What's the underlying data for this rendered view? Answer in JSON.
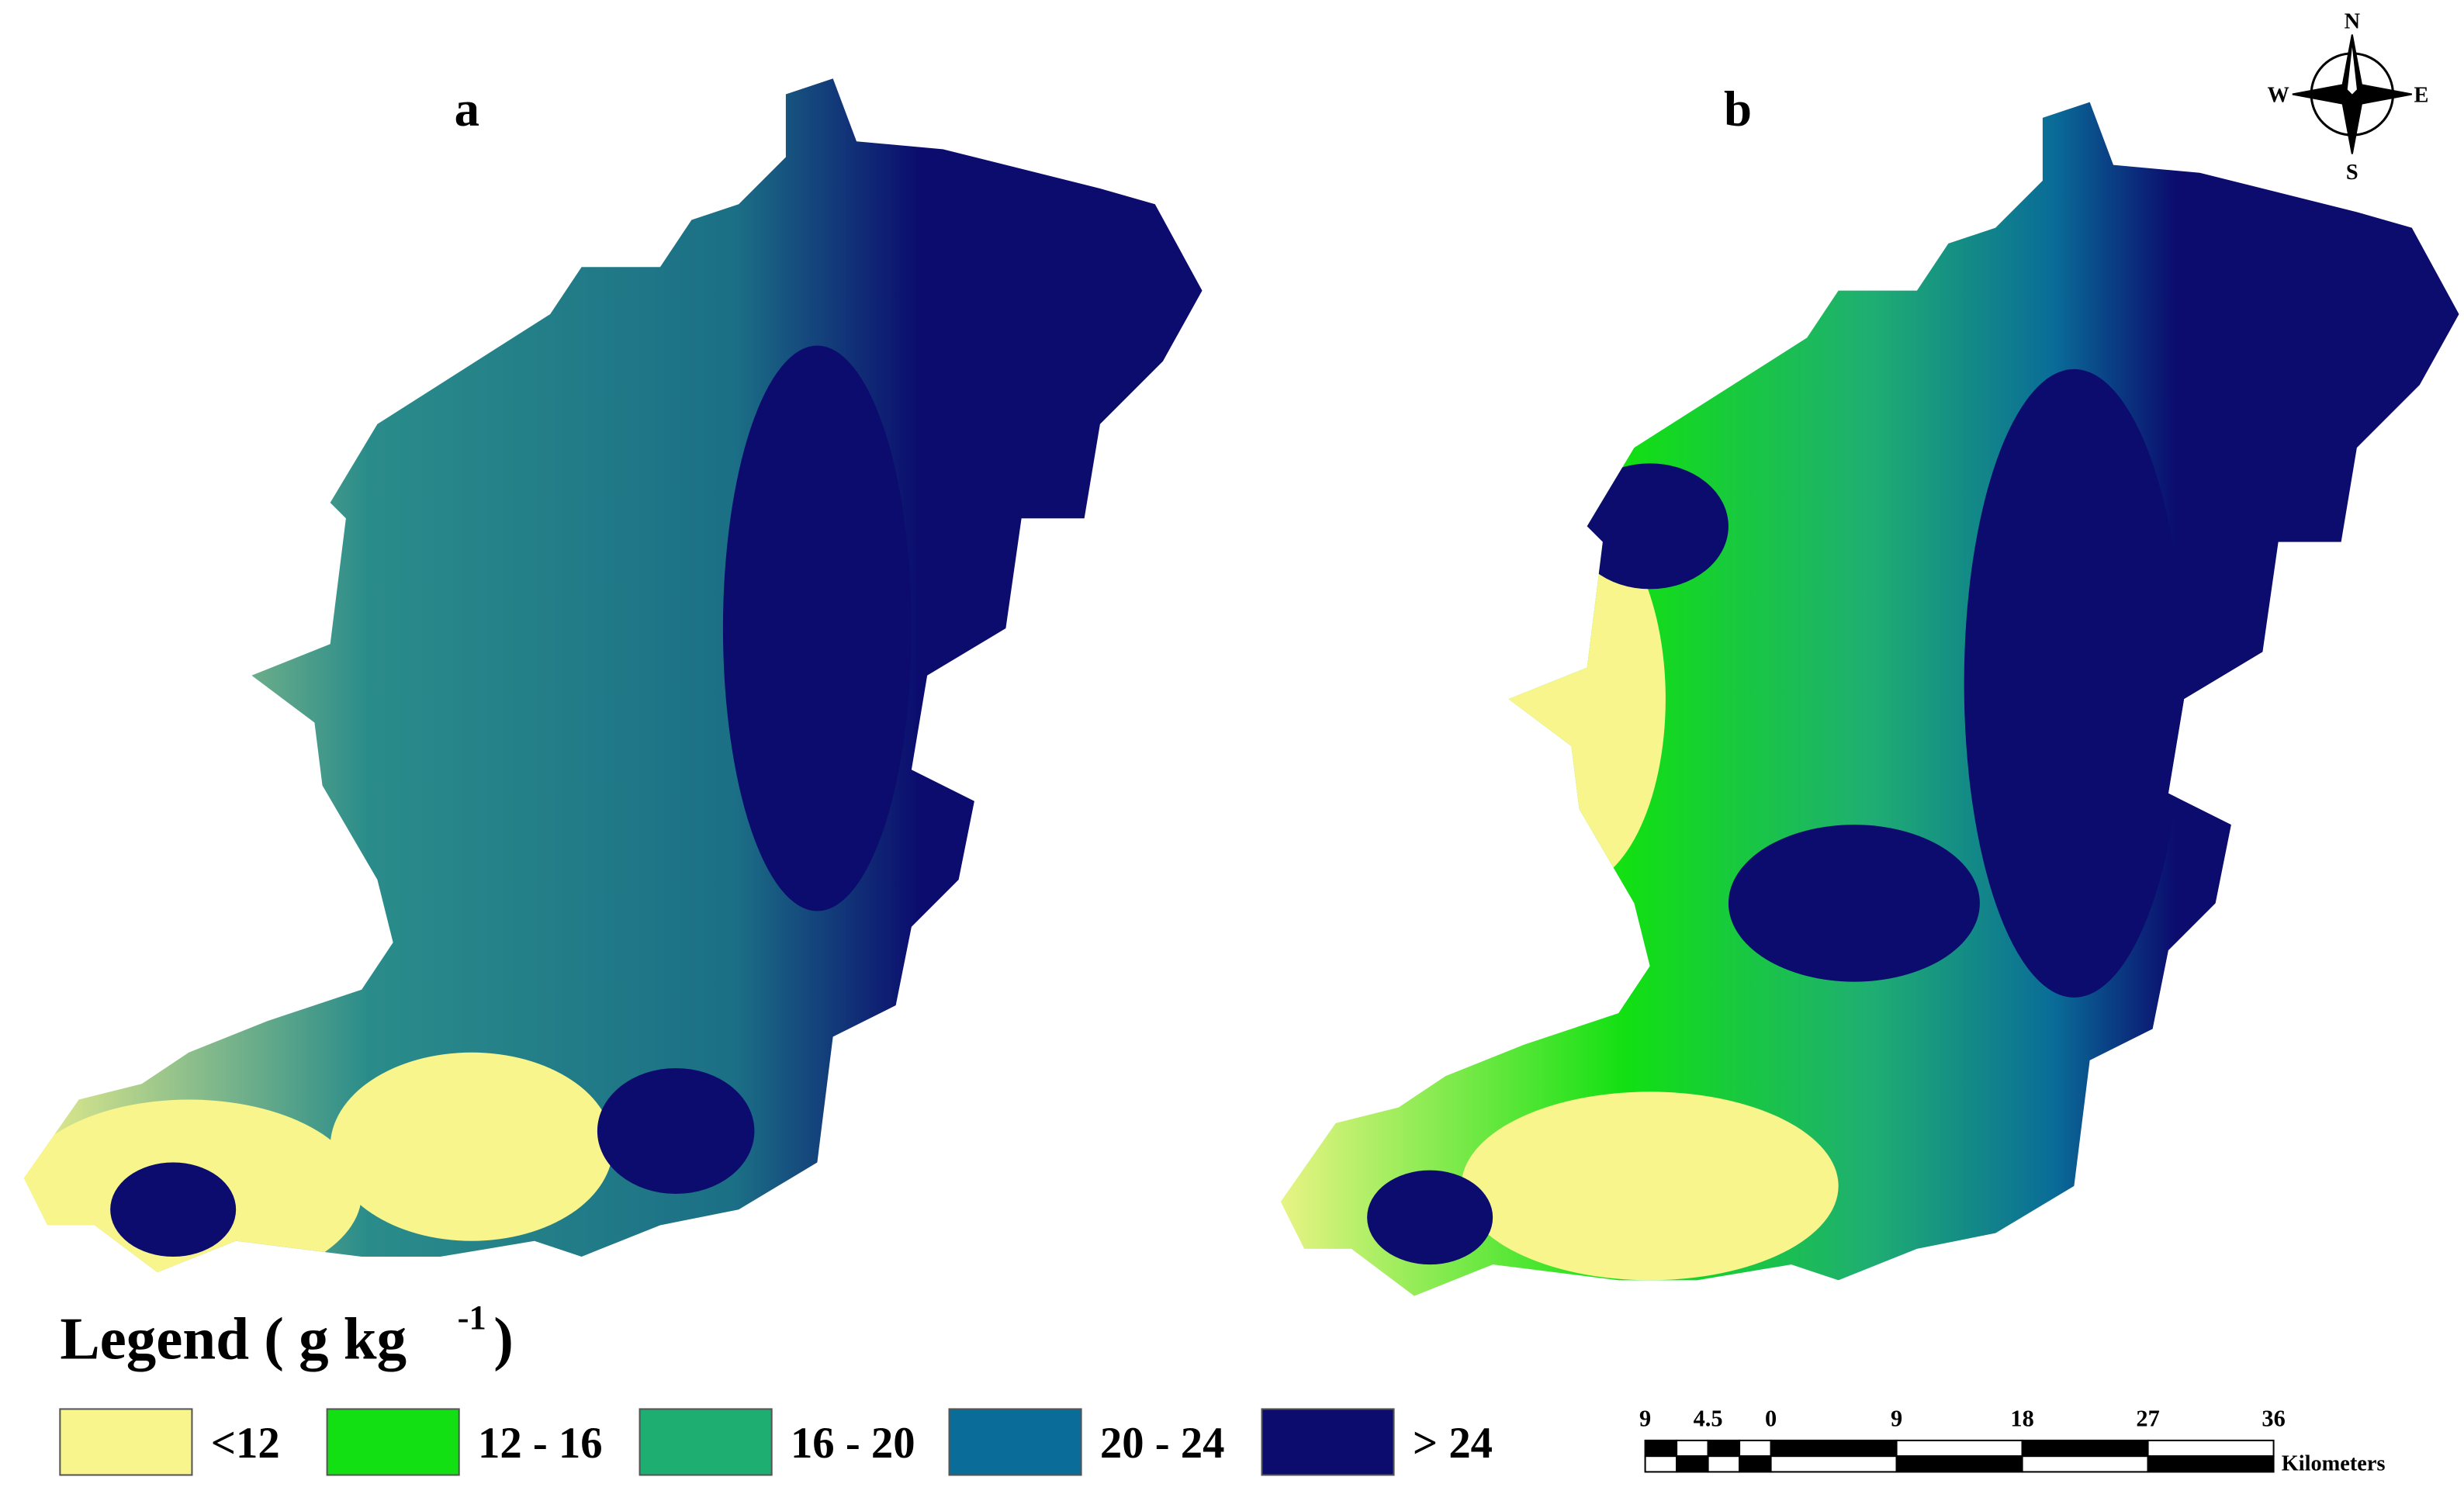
{
  "panels": [
    {
      "label": "a"
    },
    {
      "label": "b"
    }
  ],
  "compass": {
    "north": "N",
    "south": "S",
    "east": "E",
    "west": "W"
  },
  "legend": {
    "title": "Legend ( g kg",
    "exponent": "-1",
    "title_end": ")",
    "items": [
      {
        "label": "<12",
        "color": "#f7f58c"
      },
      {
        "label": "12 - 16",
        "color": "#12e012"
      },
      {
        "label": "16 - 20",
        "color": "#1fae72"
      },
      {
        "label": "20 - 24",
        "color": "#0a6c98"
      },
      {
        "label": "> 24",
        "color": "#0b0c6e"
      }
    ]
  },
  "scale_bar": {
    "labels": [
      "9",
      "4.5",
      "0",
      "9",
      "18",
      "27",
      "36"
    ],
    "unit": "Kilometers"
  }
}
